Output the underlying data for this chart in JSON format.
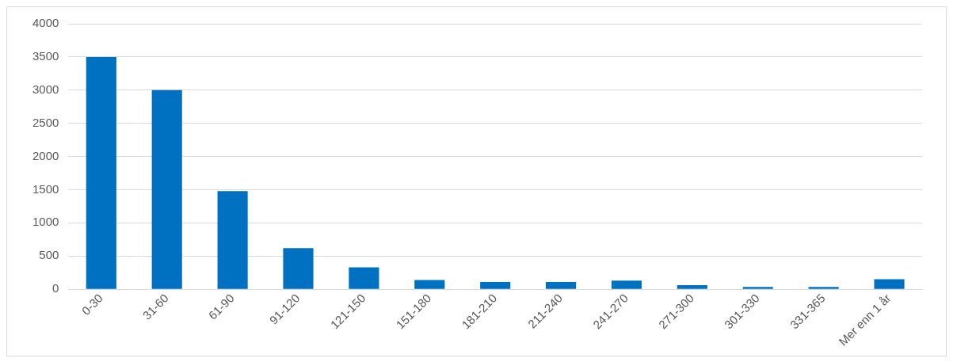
{
  "chart_data": {
    "type": "bar",
    "categories": [
      "0-30",
      "31-60",
      "61-90",
      "91-120",
      "121-150",
      "151-180",
      "181-210",
      "211-240",
      "241-270",
      "271-300",
      "301-330",
      "331-365",
      "Mer enn 1 år"
    ],
    "values": [
      3500,
      3000,
      1480,
      620,
      330,
      140,
      110,
      110,
      130,
      60,
      35,
      35,
      150
    ],
    "color": "#0070c0",
    "ylim": [
      0,
      4000
    ],
    "yticks": [
      0,
      500,
      1000,
      1500,
      2000,
      2500,
      3000,
      3500,
      4000
    ],
    "grid": "y"
  }
}
